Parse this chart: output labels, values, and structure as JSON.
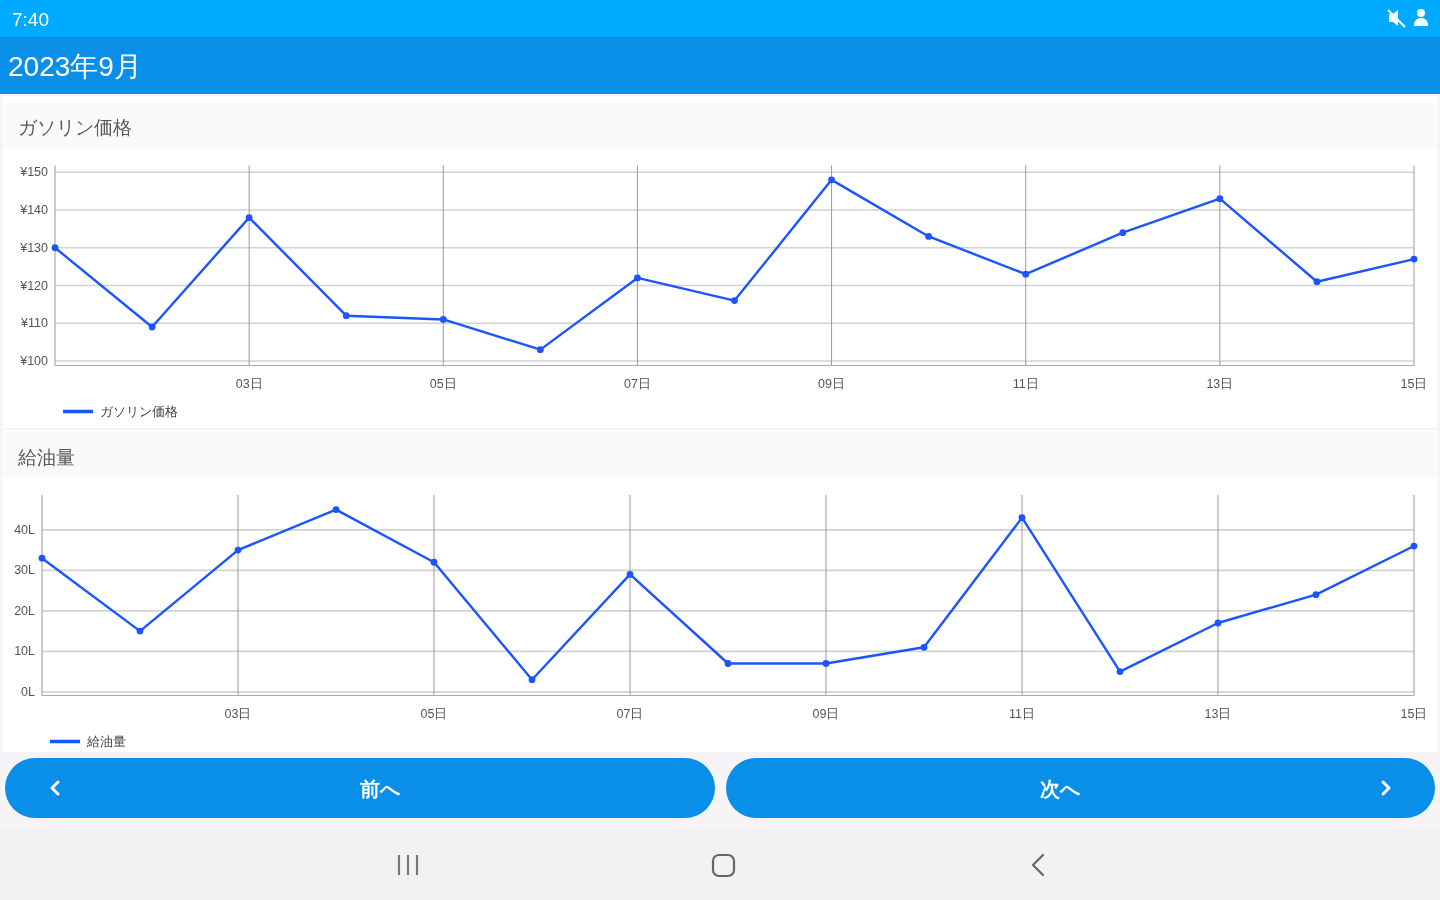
{
  "chart_data": [
    {
      "type": "line",
      "title": "ガソリン価格",
      "x": [
        1,
        2,
        3,
        4,
        5,
        6,
        7,
        8,
        9,
        10,
        11,
        12,
        13,
        14,
        15
      ],
      "xlim": [
        1,
        15
      ],
      "xticks": [
        {
          "value": 3,
          "label": "03日"
        },
        {
          "value": 5,
          "label": "05日"
        },
        {
          "value": 7,
          "label": "07日"
        },
        {
          "value": 9,
          "label": "09日"
        },
        {
          "value": 11,
          "label": "11日"
        },
        {
          "value": 13,
          "label": "13日"
        },
        {
          "value": 15,
          "label": "15日"
        }
      ],
      "ylim": [
        98.8,
        151.8
      ],
      "yticks": [
        {
          "value": 100,
          "label": "¥100"
        },
        {
          "value": 110,
          "label": "¥110"
        },
        {
          "value": 120,
          "label": "¥120"
        },
        {
          "value": 130,
          "label": "¥130"
        },
        {
          "value": 140,
          "label": "¥140"
        },
        {
          "value": 150,
          "label": "¥150"
        }
      ],
      "series": [
        {
          "name": "ガソリン価格",
          "color": "#1a55ff",
          "values": [
            130,
            109,
            138,
            112,
            111,
            103,
            122,
            116,
            148,
            133,
            123,
            134,
            143,
            121,
            127
          ]
        }
      ],
      "grid": true,
      "legend": "bottom left",
      "marker": "circle",
      "annotations": [
        "7:40",
        "2023年9月"
      ]
    },
    {
      "type": "line",
      "title": "給油量",
      "x": [
        1,
        2,
        3,
        4,
        5,
        6,
        7,
        8,
        9,
        10,
        11,
        12,
        13,
        14,
        15
      ],
      "xlim": [
        1,
        15
      ],
      "xticks": [
        {
          "value": 3,
          "label": "03日"
        },
        {
          "value": 5,
          "label": "05日"
        },
        {
          "value": 7,
          "label": "07日"
        },
        {
          "value": 9,
          "label": "09日"
        },
        {
          "value": 11,
          "label": "11日"
        },
        {
          "value": 13,
          "label": "13日"
        },
        {
          "value": 15,
          "label": "15日"
        }
      ],
      "ylim": [
        -0.9,
        48.6
      ],
      "yticks": [
        {
          "value": 0,
          "label": "0L"
        },
        {
          "value": 10,
          "label": "10L"
        },
        {
          "value": 20,
          "label": "20L"
        },
        {
          "value": 30,
          "label": "30L"
        },
        {
          "value": 40,
          "label": "40L"
        }
      ],
      "series": [
        {
          "name": "給油量",
          "color": "#1a55ff",
          "values": [
            33,
            15,
            35,
            45,
            32,
            3,
            29,
            7,
            7,
            11,
            43,
            5,
            17,
            24,
            36
          ]
        }
      ],
      "grid": true,
      "legend": "bottom left",
      "marker": "circle",
      "annotations": [
        "前へ",
        "次へ"
      ]
    }
  ]
}
